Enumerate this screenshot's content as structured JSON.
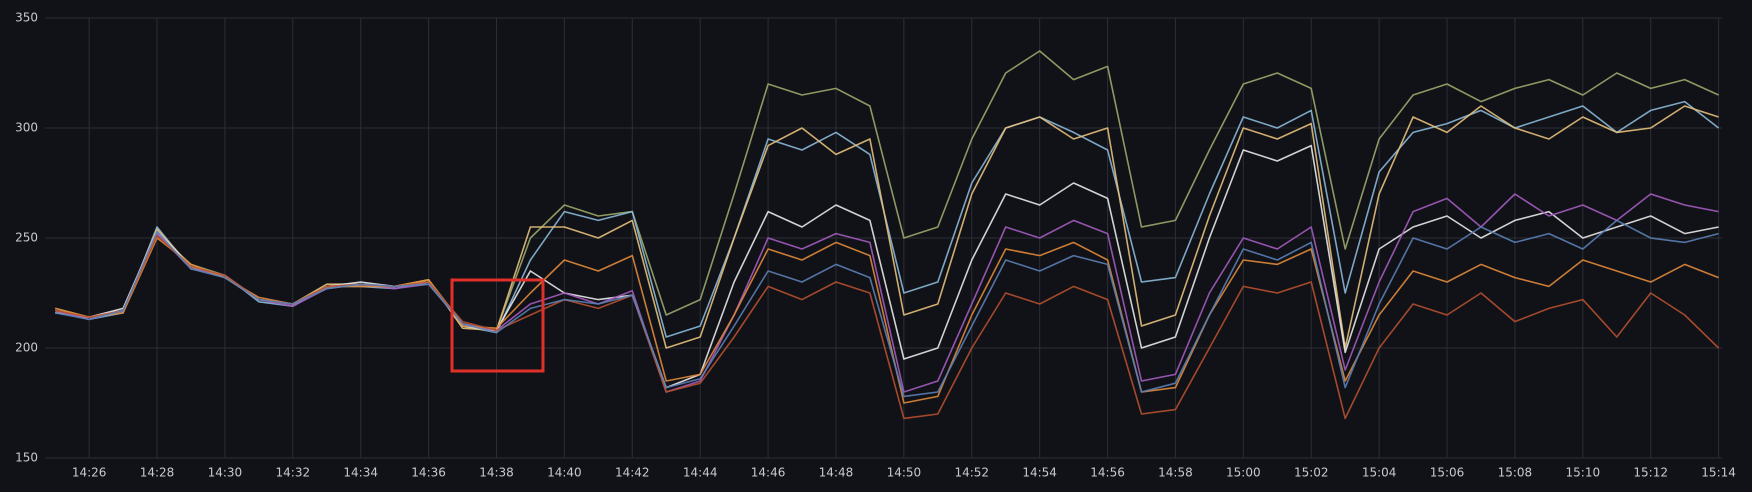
{
  "chart_data": {
    "type": "line",
    "x": [
      865,
      866,
      867,
      868,
      869,
      870,
      871,
      872,
      873,
      874,
      875,
      876,
      877,
      878,
      879,
      880,
      881,
      882,
      883,
      884,
      885,
      886,
      887,
      888,
      889,
      890,
      891,
      892,
      893,
      894,
      895,
      896,
      897,
      898,
      899,
      900,
      901,
      902,
      903,
      904,
      905,
      906,
      907,
      908,
      909,
      910,
      911,
      912,
      913,
      914
    ],
    "xlim": [
      864.7,
      914.1
    ],
    "xticks": [
      {
        "value": 866,
        "label": "14:26"
      },
      {
        "value": 868,
        "label": "14:28"
      },
      {
        "value": 870,
        "label": "14:30"
      },
      {
        "value": 872,
        "label": "14:32"
      },
      {
        "value": 874,
        "label": "14:34"
      },
      {
        "value": 876,
        "label": "14:36"
      },
      {
        "value": 878,
        "label": "14:38"
      },
      {
        "value": 880,
        "label": "14:40"
      },
      {
        "value": 882,
        "label": "14:42"
      },
      {
        "value": 884,
        "label": "14:44"
      },
      {
        "value": 886,
        "label": "14:46"
      },
      {
        "value": 888,
        "label": "14:48"
      },
      {
        "value": 890,
        "label": "14:50"
      },
      {
        "value": 892,
        "label": "14:52"
      },
      {
        "value": 894,
        "label": "14:54"
      },
      {
        "value": 896,
        "label": "14:56"
      },
      {
        "value": 898,
        "label": "14:58"
      },
      {
        "value": 900,
        "label": "15:00"
      },
      {
        "value": 902,
        "label": "15:02"
      },
      {
        "value": 904,
        "label": "15:04"
      },
      {
        "value": 906,
        "label": "15:06"
      },
      {
        "value": 908,
        "label": "15:08"
      },
      {
        "value": 910,
        "label": "15:10"
      },
      {
        "value": 912,
        "label": "15:12"
      },
      {
        "value": 914,
        "label": "15:14"
      }
    ],
    "ylim": [
      150,
      350
    ],
    "yticks": [
      150,
      200,
      250,
      300,
      350
    ],
    "grid": true,
    "series": [
      {
        "color": "#9aa86b",
        "values": [
          218,
          214,
          217,
          252,
          238,
          233,
          222,
          220,
          227,
          229,
          228,
          231,
          211,
          208,
          250,
          265,
          260,
          262,
          215,
          222,
          270,
          320,
          315,
          318,
          310,
          250,
          255,
          295,
          325,
          335,
          322,
          328,
          255,
          258,
          290,
          320,
          325,
          318,
          245,
          295,
          315,
          320,
          312,
          318,
          322,
          315,
          325,
          318,
          322,
          315
        ]
      },
      {
        "color": "#8ab8d8",
        "values": [
          217,
          213,
          216,
          255,
          236,
          233,
          221,
          219,
          228,
          228,
          227,
          230,
          210,
          207,
          240,
          262,
          258,
          262,
          205,
          210,
          250,
          295,
          290,
          298,
          288,
          225,
          230,
          275,
          300,
          305,
          298,
          290,
          230,
          232,
          270,
          305,
          300,
          308,
          225,
          280,
          298,
          302,
          308,
          300,
          305,
          310,
          298,
          308,
          312,
          300
        ]
      },
      {
        "color": "#e5c07b",
        "values": [
          217,
          214,
          217,
          254,
          237,
          232,
          222,
          220,
          229,
          229,
          228,
          231,
          209,
          208,
          255,
          255,
          250,
          258,
          200,
          205,
          250,
          292,
          300,
          288,
          295,
          215,
          220,
          270,
          300,
          305,
          295,
          300,
          210,
          215,
          260,
          300,
          295,
          302,
          200,
          270,
          305,
          298,
          310,
          300,
          295,
          305,
          298,
          300,
          310,
          305
        ]
      },
      {
        "color": "#e8e8e8",
        "values": [
          216,
          214,
          218,
          253,
          237,
          233,
          222,
          220,
          228,
          230,
          228,
          230,
          210,
          208,
          235,
          225,
          222,
          224,
          182,
          188,
          230,
          262,
          255,
          265,
          258,
          195,
          200,
          240,
          270,
          265,
          275,
          268,
          200,
          205,
          250,
          290,
          285,
          292,
          198,
          245,
          255,
          260,
          250,
          258,
          262,
          250,
          255,
          260,
          252,
          255
        ]
      },
      {
        "color": "#a35cbf",
        "values": [
          217,
          213,
          217,
          252,
          236,
          233,
          222,
          219,
          227,
          229,
          227,
          229,
          211,
          208,
          220,
          225,
          220,
          226,
          180,
          185,
          215,
          250,
          245,
          252,
          248,
          180,
          185,
          220,
          255,
          250,
          258,
          252,
          185,
          188,
          225,
          250,
          245,
          255,
          190,
          230,
          262,
          268,
          255,
          270,
          260,
          265,
          258,
          270,
          265,
          262
        ]
      },
      {
        "color": "#e0893a",
        "values": [
          218,
          214,
          216,
          250,
          238,
          232,
          223,
          220,
          228,
          228,
          228,
          231,
          210,
          209,
          225,
          240,
          235,
          242,
          185,
          188,
          215,
          245,
          240,
          248,
          242,
          175,
          178,
          215,
          245,
          242,
          248,
          240,
          180,
          182,
          215,
          240,
          238,
          245,
          185,
          215,
          235,
          230,
          238,
          232,
          228,
          240,
          235,
          230,
          238,
          232
        ]
      },
      {
        "color": "#b5502f",
        "values": [
          217,
          214,
          217,
          251,
          237,
          233,
          222,
          220,
          228,
          229,
          228,
          230,
          212,
          208,
          215,
          222,
          218,
          224,
          180,
          184,
          205,
          228,
          222,
          230,
          225,
          168,
          170,
          200,
          225,
          220,
          228,
          222,
          170,
          172,
          200,
          228,
          225,
          230,
          168,
          200,
          220,
          215,
          225,
          212,
          218,
          222,
          205,
          225,
          215,
          200
        ]
      },
      {
        "color": "#5b7fb5",
        "values": [
          216,
          213,
          217,
          253,
          236,
          232,
          222,
          220,
          227,
          229,
          228,
          229,
          211,
          207,
          218,
          222,
          220,
          224,
          182,
          186,
          210,
          235,
          230,
          238,
          232,
          178,
          180,
          210,
          240,
          235,
          242,
          238,
          180,
          184,
          215,
          245,
          240,
          248,
          182,
          220,
          250,
          245,
          255,
          248,
          252,
          245,
          258,
          250,
          248,
          252
        ]
      }
    ]
  }
}
